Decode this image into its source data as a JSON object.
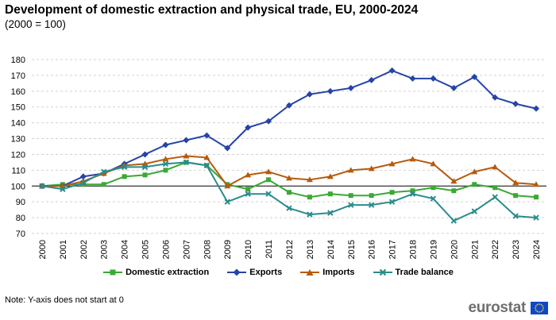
{
  "header": {
    "title": "Development of domestic extraction and physical trade, EU, 2000-2024",
    "subtitle": "(2000 = 100)"
  },
  "footer": {
    "note": "Note: Y-axis does not start at 0",
    "logo_text": "eurostat"
  },
  "chart_data": {
    "type": "line",
    "title": "Development of domestic extraction and physical trade, EU, 2000-2024",
    "subtitle": "(2000 = 100)",
    "xlabel": "",
    "ylabel": "",
    "ylim": [
      70,
      180
    ],
    "ytick_step": 10,
    "baseline": 100,
    "grid": "horizontal dashed",
    "legend_position": "bottom",
    "categories": [
      "2000",
      "2001",
      "2002",
      "2003",
      "2004",
      "2005",
      "2006",
      "2007",
      "2008",
      "2009",
      "2010",
      "2011",
      "2012",
      "2013",
      "2014",
      "2015",
      "2016",
      "2017",
      "2018",
      "2019",
      "2020",
      "2021",
      "2022",
      "2023",
      "2024"
    ],
    "series": [
      {
        "name": "Domestic extraction",
        "color": "#3aa935",
        "marker": "square",
        "values": [
          100,
          101,
          101,
          101,
          106,
          107,
          110,
          115,
          113,
          101,
          98,
          104,
          96,
          93,
          95,
          94,
          94,
          96,
          97,
          99,
          97,
          101,
          99,
          94,
          93
        ]
      },
      {
        "name": "Exports",
        "color": "#2644a7",
        "marker": "diamond",
        "values": [
          100,
          100,
          106,
          108,
          114,
          120,
          126,
          129,
          132,
          124,
          137,
          141,
          151,
          158,
          160,
          162,
          167,
          173,
          168,
          168,
          162,
          169,
          156,
          152,
          149
        ]
      },
      {
        "name": "Imports",
        "color": "#b65b0d",
        "marker": "triangle",
        "values": [
          100,
          100,
          103,
          108,
          113,
          114,
          117,
          119,
          118,
          100,
          107,
          109,
          105,
          104,
          106,
          110,
          111,
          114,
          117,
          114,
          103,
          109,
          112,
          102,
          101
        ]
      },
      {
        "name": "Trade balance",
        "color": "#2a8c8c",
        "marker": "x",
        "values": [
          100,
          98,
          102,
          109,
          112,
          112,
          114,
          115,
          113,
          90,
          95,
          95,
          86,
          82,
          83,
          88,
          88,
          90,
          95,
          92,
          78,
          84,
          93,
          81,
          80
        ]
      }
    ]
  }
}
